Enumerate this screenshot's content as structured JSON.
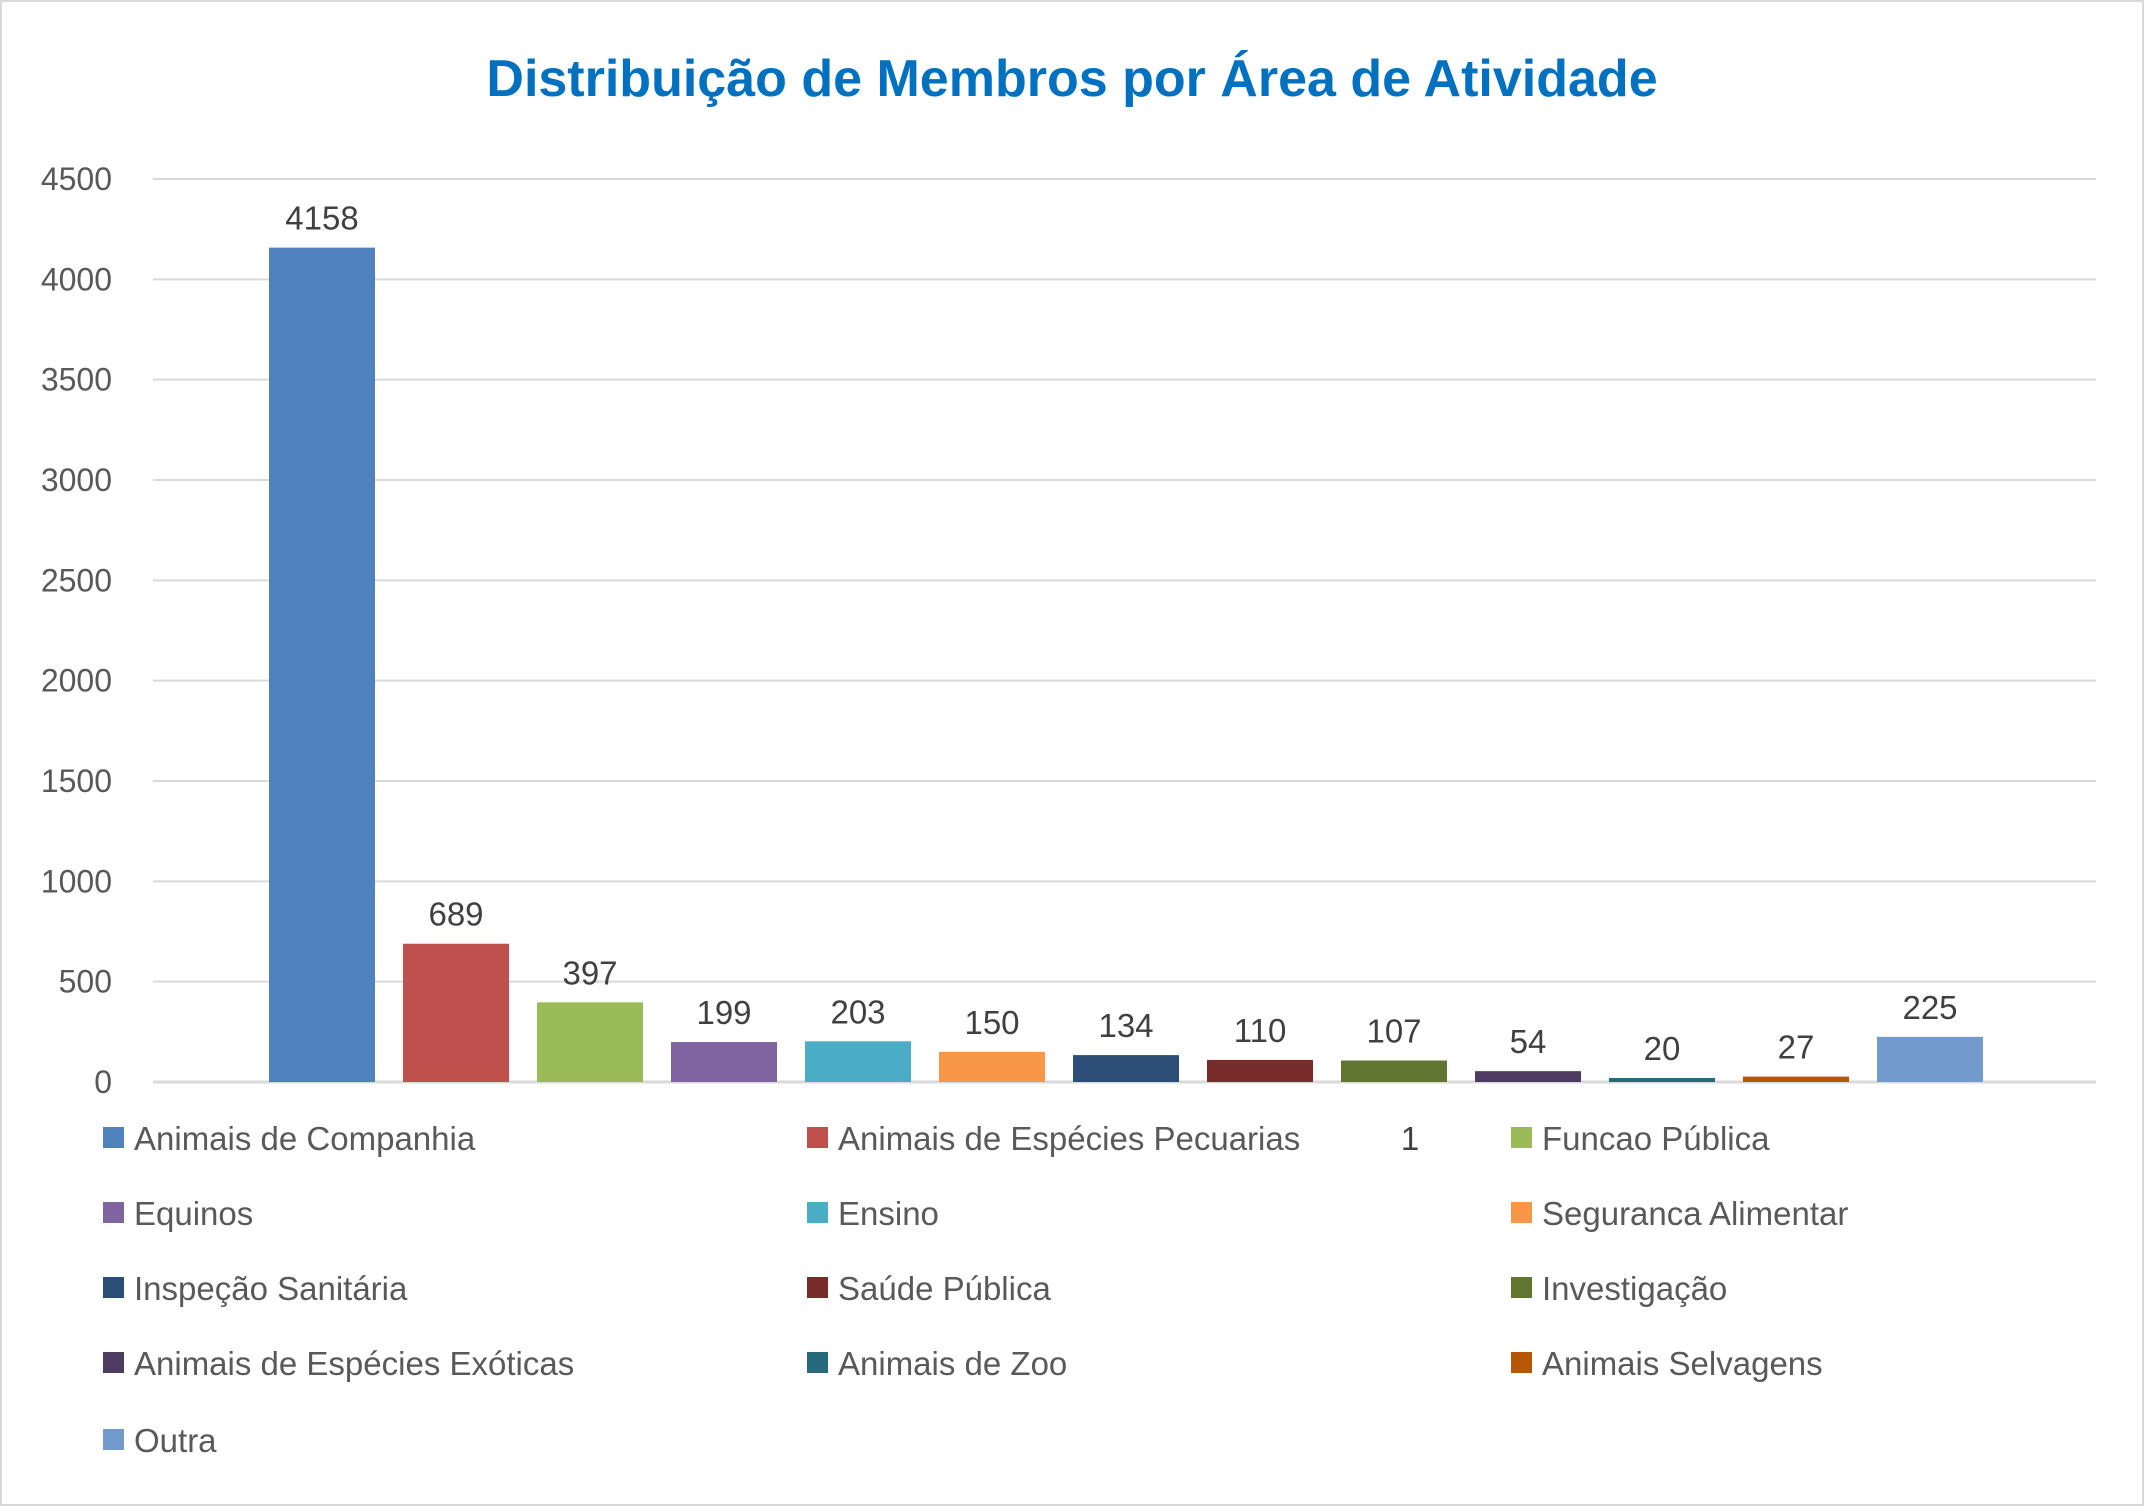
{
  "chart_data": {
    "type": "bar",
    "title": "Distribuição de Membros por Área de Atividade",
    "xlabel": "",
    "ylabel": "",
    "ylim": [
      0,
      4500
    ],
    "yticks": [
      0,
      500,
      1000,
      1500,
      2000,
      2500,
      3000,
      3500,
      4000,
      4500
    ],
    "grid": true,
    "legend_position": "bottom",
    "categories": [
      "Animais de Companhia",
      "Animais de Espécies Pecuarias",
      "Funcao Pública",
      "Equinos",
      "Ensino",
      "Seguranca Alimentar",
      "Inspeção Sanitária",
      "Saúde Pública",
      "Investigação",
      "Animais de Espécies Exóticas",
      "Animais de Zoo",
      "Animais Selvagens",
      "Outra"
    ],
    "values": [
      4158,
      689,
      397,
      199,
      203,
      150,
      134,
      110,
      107,
      54,
      20,
      27,
      225
    ],
    "colors": [
      "#4f81bd",
      "#c0504d",
      "#9bbb59",
      "#8064a2",
      "#4bacc6",
      "#f79646",
      "#2c4d75",
      "#772c2a",
      "#5f7530",
      "#4d3b62",
      "#276a7c",
      "#b65708",
      "#729aca"
    ],
    "stray_label": "1"
  }
}
